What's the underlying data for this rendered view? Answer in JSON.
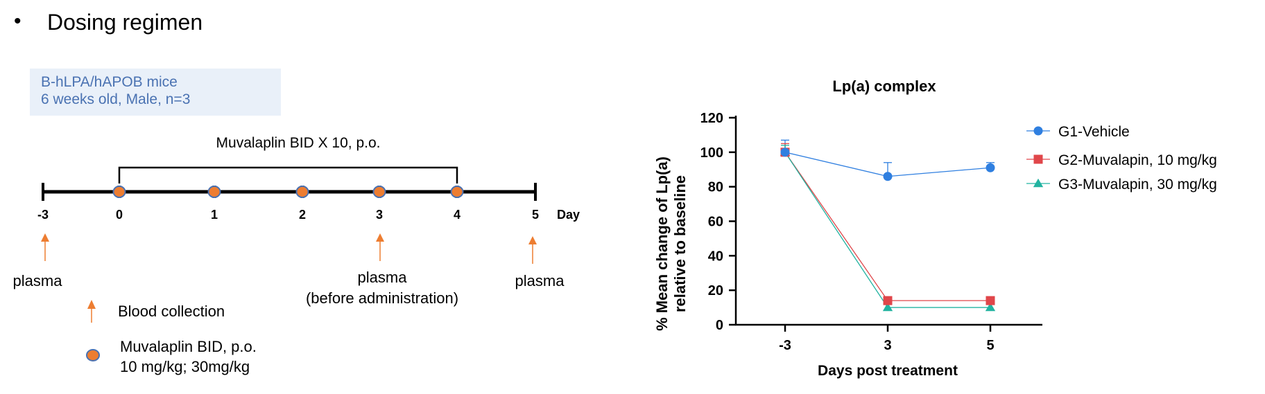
{
  "header": {
    "bullet": "•",
    "title": "Dosing regimen"
  },
  "info_box": {
    "line1": "B-hLPA/hAPOB mice",
    "line2": "6 weeks old, Male, n=3"
  },
  "timeline": {
    "bracket_label": "Muvalaplin BID X 10, p.o.",
    "day_unit": "Day",
    "days": [
      "-3",
      "0",
      "1",
      "2",
      "3",
      "4",
      "5"
    ],
    "dose_days": [
      "0",
      "1",
      "2",
      "3",
      "4"
    ],
    "collections": [
      {
        "day": "-3",
        "lines": [
          "plasma"
        ]
      },
      {
        "day": "3",
        "lines": [
          "plasma",
          "(before administration)"
        ]
      },
      {
        "day": "5",
        "lines": [
          "plasma"
        ]
      }
    ],
    "colors": {
      "arrow": "#ed7d31",
      "dose_fill": "#ed7d31",
      "dose_stroke": "#4a72b2",
      "axis": "#000000"
    }
  },
  "legend_left": {
    "blood": "Blood collection",
    "dose_line1": "Muvalaplin BID, p.o.",
    "dose_line2": "10 mg/kg; 30mg/kg"
  },
  "chart_data": {
    "type": "line",
    "title": "Lp(a) complex",
    "xlabel": "Days post treatment",
    "ylabel": [
      "% Mean change of Lp(a)",
      "relative to baseline"
    ],
    "categories": [
      "-3",
      "3",
      "5"
    ],
    "ylim": [
      0,
      120
    ],
    "yticks": [
      0,
      20,
      40,
      60,
      80,
      100,
      120
    ],
    "grid": false,
    "legend": "right",
    "series": [
      {
        "name": "G1-Vehicle",
        "marker": "circle",
        "color": "#2f7fe0",
        "values": [
          100,
          86,
          91
        ],
        "err_upper": [
          7,
          8,
          3
        ]
      },
      {
        "name": "G2-Muvalapin, 10 mg/kg",
        "marker": "square",
        "color": "#e0464a",
        "values": [
          100,
          14,
          14
        ],
        "err_upper": [
          5,
          0,
          0
        ]
      },
      {
        "name": "G3-Muvalapin, 30 mg/kg",
        "marker": "triangle",
        "color": "#21b3a0",
        "values": [
          100,
          10,
          10
        ],
        "err_upper": [
          4,
          0,
          0
        ]
      }
    ]
  }
}
